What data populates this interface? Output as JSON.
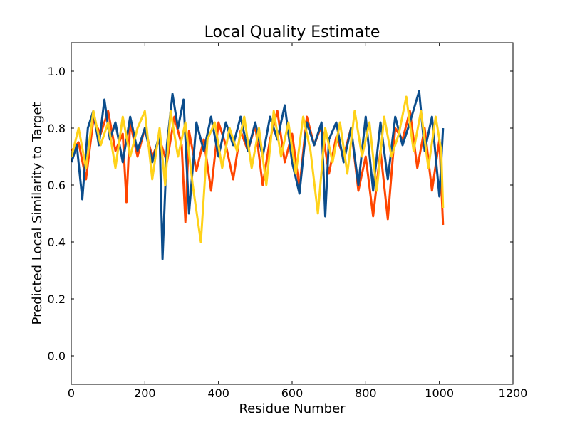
{
  "chart_data": {
    "type": "line",
    "title": "Local Quality Estimate",
    "xlabel": "Residue Number",
    "ylabel": "Predicted Local Similarity to Target",
    "xlim": [
      0,
      1200
    ],
    "ylim": [
      -0.1,
      1.1
    ],
    "xticks": [
      0,
      200,
      400,
      600,
      800,
      1000,
      1200
    ],
    "yticks": [
      0.0,
      0.2,
      0.4,
      0.6,
      0.8,
      1.0
    ],
    "xtick_labels": [
      "0",
      "200",
      "400",
      "600",
      "800",
      "1000",
      "1200"
    ],
    "ytick_labels": [
      "0.0",
      "0.2",
      "0.4",
      "0.6",
      "0.8",
      "1.0"
    ],
    "grid": false,
    "legend": "none",
    "series": [
      {
        "color": "#FF4500",
        "x": [
          1,
          20,
          40,
          60,
          80,
          100,
          120,
          140,
          150,
          160,
          180,
          200,
          220,
          240,
          260,
          280,
          300,
          310,
          320,
          340,
          360,
          380,
          400,
          420,
          440,
          460,
          480,
          500,
          520,
          540,
          560,
          580,
          600,
          620,
          640,
          660,
          680,
          700,
          720,
          740,
          760,
          780,
          800,
          820,
          840,
          860,
          880,
          900,
          920,
          940,
          960,
          980,
          1000,
          1010
        ],
        "y": [
          0.72,
          0.75,
          0.62,
          0.83,
          0.78,
          0.86,
          0.72,
          0.78,
          0.54,
          0.82,
          0.7,
          0.8,
          0.7,
          0.76,
          0.68,
          0.84,
          0.74,
          0.47,
          0.79,
          0.65,
          0.76,
          0.58,
          0.82,
          0.74,
          0.62,
          0.79,
          0.72,
          0.81,
          0.6,
          0.76,
          0.86,
          0.68,
          0.78,
          0.59,
          0.84,
          0.74,
          0.81,
          0.64,
          0.77,
          0.7,
          0.8,
          0.58,
          0.7,
          0.49,
          0.72,
          0.48,
          0.8,
          0.76,
          0.86,
          0.66,
          0.8,
          0.58,
          0.76,
          0.46
        ]
      },
      {
        "color": "#0B4D8C",
        "x": [
          1,
          15,
          30,
          45,
          60,
          75,
          90,
          105,
          120,
          140,
          160,
          180,
          200,
          220,
          240,
          248,
          260,
          275,
          290,
          305,
          320,
          340,
          360,
          380,
          400,
          420,
          440,
          460,
          480,
          500,
          520,
          540,
          560,
          580,
          600,
          620,
          640,
          660,
          680,
          690,
          700,
          720,
          740,
          760,
          780,
          800,
          820,
          840,
          860,
          880,
          900,
          920,
          945,
          960,
          980,
          1000,
          1010
        ],
        "y": [
          0.68,
          0.74,
          0.55,
          0.8,
          0.86,
          0.74,
          0.9,
          0.76,
          0.82,
          0.68,
          0.84,
          0.72,
          0.8,
          0.68,
          0.78,
          0.34,
          0.74,
          0.92,
          0.8,
          0.9,
          0.5,
          0.82,
          0.72,
          0.84,
          0.7,
          0.82,
          0.74,
          0.84,
          0.72,
          0.82,
          0.7,
          0.84,
          0.76,
          0.88,
          0.68,
          0.57,
          0.82,
          0.74,
          0.82,
          0.49,
          0.76,
          0.82,
          0.68,
          0.8,
          0.6,
          0.84,
          0.58,
          0.82,
          0.62,
          0.84,
          0.74,
          0.82,
          0.93,
          0.72,
          0.84,
          0.56,
          0.8
        ]
      },
      {
        "color": "#FFD21A",
        "x": [
          1,
          20,
          40,
          60,
          80,
          100,
          120,
          140,
          160,
          180,
          200,
          220,
          240,
          255,
          270,
          290,
          310,
          330,
          352,
          370,
          390,
          410,
          430,
          450,
          470,
          490,
          510,
          530,
          550,
          570,
          590,
          610,
          630,
          650,
          670,
          690,
          710,
          730,
          750,
          770,
          790,
          810,
          830,
          850,
          870,
          890,
          910,
          930,
          950,
          970,
          990,
          1005,
          1010
        ],
        "y": [
          0.7,
          0.8,
          0.66,
          0.86,
          0.74,
          0.82,
          0.66,
          0.84,
          0.7,
          0.8,
          0.86,
          0.62,
          0.8,
          0.6,
          0.86,
          0.7,
          0.82,
          0.6,
          0.4,
          0.76,
          0.82,
          0.66,
          0.8,
          0.72,
          0.84,
          0.66,
          0.8,
          0.6,
          0.86,
          0.7,
          0.82,
          0.64,
          0.84,
          0.72,
          0.5,
          0.8,
          0.68,
          0.82,
          0.64,
          0.86,
          0.7,
          0.82,
          0.58,
          0.84,
          0.7,
          0.78,
          0.91,
          0.72,
          0.86,
          0.66,
          0.84,
          0.72,
          0.52
        ]
      }
    ]
  }
}
